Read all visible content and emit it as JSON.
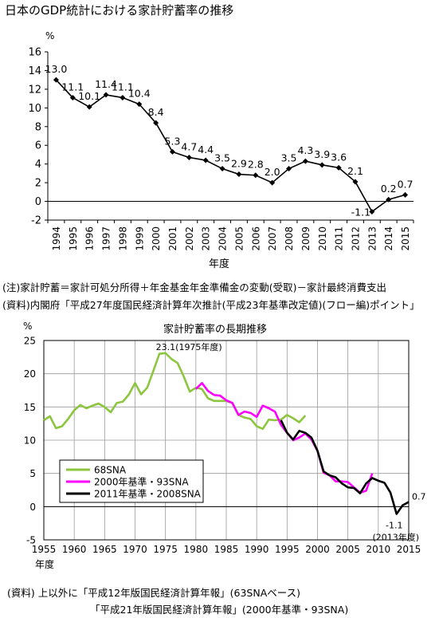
{
  "page": {
    "title": "日本のGDP統計における家計貯蓄率の推移",
    "note": "(注)家計貯蓄＝家計可処分所得＋年金基金年金準備金の変動(受取)－家計最終消費支出",
    "source": "(資料)内閣府「平成27年度国民経済計算年次推計(平成23年基準改定値)(フロー編)ポイント」",
    "footer_sources_1": "(資料) 上以外に「平成12年版国民経済計算年報」(63SNAベース)",
    "footer_sources_2": "「平成21年版国民経済計算年報」(2000年基準・93SNA)"
  },
  "chart_data": [
    {
      "type": "line",
      "title": "",
      "xlabel": "年度",
      "ylabel": "%",
      "x": [
        1994,
        1995,
        1996,
        1997,
        1998,
        1999,
        2000,
        2001,
        2002,
        2003,
        2004,
        2005,
        2006,
        2007,
        2008,
        2009,
        2010,
        2011,
        2012,
        2013,
        2014,
        2015
      ],
      "y": [
        13.0,
        11.1,
        10.1,
        11.4,
        11.1,
        10.4,
        8.4,
        5.3,
        4.7,
        4.4,
        3.5,
        2.9,
        2.8,
        2.0,
        3.5,
        4.3,
        3.9,
        3.6,
        2.1,
        -1.1,
        0.2,
        0.7
      ],
      "data_labels": [
        "13.0",
        "11.1",
        "10.1",
        "11.4",
        "11.1",
        "10.4",
        "8.4",
        "5.3",
        "4.7",
        "4.4",
        "3.5",
        "2.9",
        "2.8",
        "2.0",
        "3.5",
        "4.3",
        "3.9",
        "3.6",
        "2.1",
        "-1.1",
        "0.2",
        "0.7"
      ],
      "ylim": [
        -2,
        16
      ],
      "yticks": [
        "-2",
        "0",
        "2",
        "4",
        "6",
        "8",
        "10",
        "12",
        "14",
        "16"
      ],
      "grid": false,
      "colors": {
        "line": "#000000",
        "axis": "#000000"
      }
    },
    {
      "type": "line",
      "title": "家計貯蓄率の長期推移",
      "xlabel": "年度",
      "ylabel": "%",
      "xlim": [
        1955,
        2015
      ],
      "ylim": [
        -5,
        25
      ],
      "xticks": [
        "1955",
        "1960",
        "1965",
        "1970",
        "1975",
        "1980",
        "1985",
        "1990",
        "1995",
        "2000",
        "2005",
        "2010",
        "2015"
      ],
      "yticks": [
        "-5",
        "0",
        "5",
        "10",
        "15",
        "20",
        "25"
      ],
      "grid": true,
      "legend_position": "bottom-left",
      "series": [
        {
          "name": "68SNA",
          "color": "#8cc63e",
          "x": [
            1955,
            1956,
            1957,
            1958,
            1959,
            1960,
            1961,
            1962,
            1963,
            1964,
            1965,
            1966,
            1967,
            1968,
            1969,
            1970,
            1971,
            1972,
            1973,
            1974,
            1975,
            1976,
            1977,
            1978,
            1979,
            1980,
            1981,
            1982,
            1983,
            1984,
            1985,
            1986,
            1987,
            1988,
            1989,
            1990,
            1991,
            1992,
            1993,
            1994,
            1995,
            1996,
            1997,
            1998
          ],
          "y": [
            13.0,
            13.6,
            11.8,
            12.1,
            13.2,
            14.5,
            15.3,
            14.8,
            15.2,
            15.5,
            15.0,
            14.2,
            15.6,
            15.8,
            16.9,
            18.6,
            16.9,
            17.9,
            20.4,
            23.0,
            23.1,
            22.2,
            21.6,
            19.6,
            17.3,
            17.9,
            17.7,
            16.3,
            15.9,
            15.9,
            15.9,
            15.6,
            13.8,
            13.4,
            13.2,
            12.1,
            11.7,
            13.1,
            13.0,
            13.1,
            13.8,
            13.3,
            12.7,
            13.7
          ]
        },
        {
          "name": "2000年基準・93SNA",
          "color": "#ff00ff",
          "x": [
            1980,
            1981,
            1982,
            1983,
            1984,
            1985,
            1986,
            1987,
            1988,
            1989,
            1990,
            1991,
            1992,
            1993,
            1994,
            1995,
            1996,
            1997,
            1998,
            1999,
            2000,
            2001,
            2002,
            2003,
            2004,
            2005,
            2006,
            2007,
            2008,
            2009
          ],
          "y": [
            17.7,
            18.6,
            17.4,
            16.8,
            16.7,
            16.0,
            15.6,
            13.8,
            14.3,
            14.1,
            13.5,
            15.2,
            14.8,
            14.3,
            12.3,
            11.1,
            10.0,
            10.4,
            11.0,
            10.1,
            8.4,
            5.1,
            4.7,
            3.8,
            3.8,
            3.7,
            2.9,
            2.1,
            2.4,
            5.0
          ]
        },
        {
          "name": "2011年基準・2008SNA",
          "color": "#000000",
          "x": [
            1994,
            1995,
            1996,
            1997,
            1998,
            1999,
            2000,
            2001,
            2002,
            2003,
            2004,
            2005,
            2006,
            2007,
            2008,
            2009,
            2010,
            2011,
            2012,
            2013,
            2014,
            2015
          ],
          "y": [
            13.0,
            11.1,
            10.1,
            11.4,
            11.1,
            10.4,
            8.4,
            5.3,
            4.7,
            4.4,
            3.5,
            2.9,
            2.8,
            2.0,
            3.5,
            4.3,
            3.9,
            3.6,
            2.1,
            -1.1,
            0.2,
            0.7
          ]
        }
      ],
      "annotations": [
        {
          "text": "23.1(1975年度)",
          "x": 1975,
          "y": 23.1
        },
        {
          "text": "0.7",
          "x": 2015,
          "y": 0.7
        },
        {
          "text": "-1.1",
          "x": 2013,
          "y": -1.1
        },
        {
          "text": "(2013年度)",
          "x": 2013,
          "y": -1.1
        }
      ]
    }
  ]
}
